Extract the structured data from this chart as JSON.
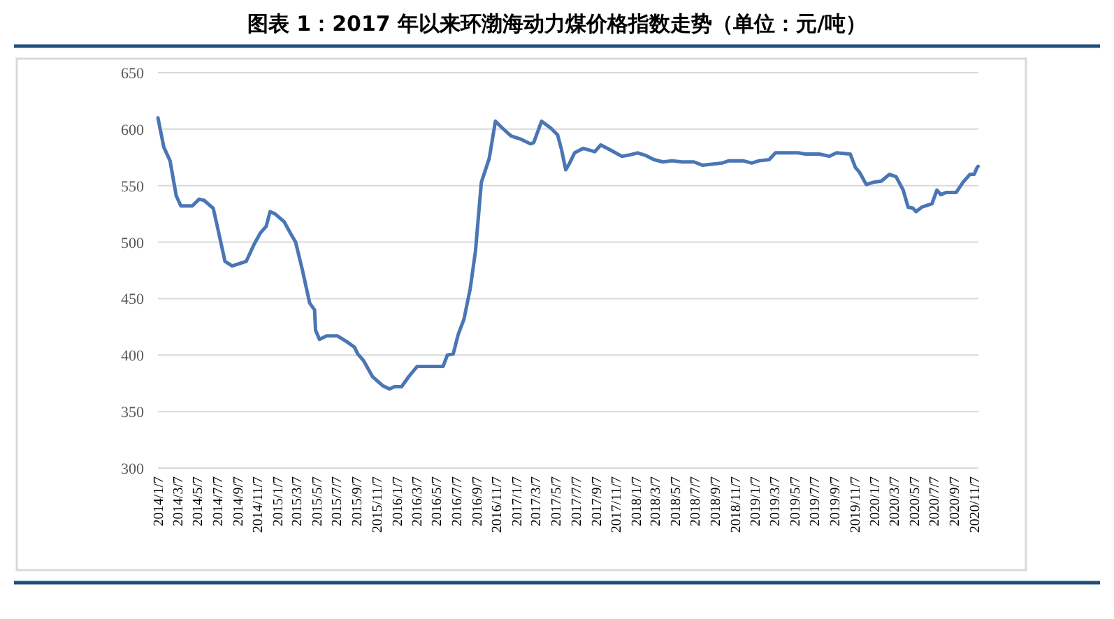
{
  "chart_data": {
    "type": "line",
    "title": "图表 1：2017 年以来环渤海动力煤价格指数走势（单位：元/吨）",
    "x": [
      "2014-01-07",
      "2014-01-25",
      "2014-02-13",
      "2014-03-04",
      "2014-03-18",
      "2014-04-22",
      "2014-05-13",
      "2014-05-28",
      "2014-06-25",
      "2014-07-06",
      "2014-07-31",
      "2014-08-22",
      "2014-10-04",
      "2014-10-28",
      "2014-11-16",
      "2014-12-04",
      "2014-12-16",
      "2014-12-31",
      "2015-01-28",
      "2015-02-16",
      "2015-03-04",
      "2015-03-25",
      "2015-04-16",
      "2015-05-01",
      "2015-05-04",
      "2015-05-16",
      "2015-06-07",
      "2015-07-10",
      "2015-08-07",
      "2015-08-31",
      "2015-09-10",
      "2015-09-28",
      "2015-10-25",
      "2015-11-25",
      "2015-12-16",
      "2015-12-31",
      "2016-01-22",
      "2016-02-13",
      "2016-03-10",
      "2016-05-28",
      "2016-06-10",
      "2016-06-28",
      "2016-07-13",
      "2016-07-31",
      "2016-08-19",
      "2016-09-04",
      "2016-09-22",
      "2016-10-16",
      "2016-11-04",
      "2016-11-25",
      "2016-12-22",
      "2017-01-22",
      "2017-02-19",
      "2017-03-01",
      "2017-03-25",
      "2017-04-22",
      "2017-05-13",
      "2017-05-25",
      "2017-06-07",
      "2017-06-19",
      "2017-07-04",
      "2017-07-31",
      "2017-09-04",
      "2017-09-22",
      "2017-10-19",
      "2017-11-25",
      "2017-12-16",
      "2018-01-13",
      "2018-02-04",
      "2018-03-04",
      "2018-03-31",
      "2018-04-28",
      "2018-05-28",
      "2018-07-04",
      "2018-07-31",
      "2018-08-28",
      "2018-09-28",
      "2018-10-19",
      "2018-12-01",
      "2018-12-28",
      "2019-01-19",
      "2019-02-19",
      "2019-03-10",
      "2019-04-16",
      "2019-05-19",
      "2019-06-10",
      "2019-07-22",
      "2019-08-22",
      "2019-09-13",
      "2019-10-25",
      "2019-11-10",
      "2019-11-22",
      "2019-12-13",
      "2020-01-04",
      "2020-01-28",
      "2020-02-22",
      "2020-03-13",
      "2020-04-04",
      "2020-04-19",
      "2020-05-04",
      "2020-05-13",
      "2020-05-31",
      "2020-07-01",
      "2020-07-16",
      "2020-07-28",
      "2020-08-13",
      "2020-09-13",
      "2020-10-04",
      "2020-10-25",
      "2020-11-07",
      "2020-11-16",
      "2020-11-19"
    ],
    "series": [
      {
        "color": "#4a76b5",
        "values": [
          610,
          584,
          572,
          541,
          532,
          532,
          538,
          537,
          530,
          516,
          483,
          479,
          483,
          498,
          508,
          514,
          527,
          525,
          518,
          508,
          500,
          475,
          446,
          440,
          422,
          414,
          417,
          417,
          412,
          407,
          401,
          395,
          381,
          373,
          370,
          372,
          372,
          381,
          390,
          390,
          400,
          401,
          418,
          432,
          459,
          492,
          553,
          574,
          607,
          601,
          594,
          591,
          587,
          588,
          607,
          601,
          595,
          582,
          564,
          570,
          579,
          583,
          580,
          586,
          582,
          576,
          577,
          579,
          577,
          573,
          571,
          572,
          571,
          571,
          568,
          569,
          570,
          572,
          572,
          570,
          572,
          573,
          579,
          579,
          579,
          578,
          578,
          576,
          579,
          578,
          566,
          562,
          551,
          553,
          554,
          560,
          558,
          546,
          531,
          530,
          527,
          531,
          534,
          546,
          542,
          544,
          544,
          553,
          560,
          560,
          566,
          567
        ]
      }
    ],
    "xlim": [
      "2014-01-07",
      "2020-11-20"
    ],
    "xticks": [
      {
        "value": "2014-01-07",
        "label": "2014/1/7"
      },
      {
        "value": "2014-03-07",
        "label": "2014/3/7"
      },
      {
        "value": "2014-05-07",
        "label": "2014/5/7"
      },
      {
        "value": "2014-07-07",
        "label": "2014/7/7"
      },
      {
        "value": "2014-09-07",
        "label": "2014/9/7"
      },
      {
        "value": "2014-11-07",
        "label": "2014/11/7"
      },
      {
        "value": "2015-01-07",
        "label": "2015/1/7"
      },
      {
        "value": "2015-03-07",
        "label": "2015/3/7"
      },
      {
        "value": "2015-05-07",
        "label": "2015/5/7"
      },
      {
        "value": "2015-07-07",
        "label": "2015/7/7"
      },
      {
        "value": "2015-09-07",
        "label": "2015/9/7"
      },
      {
        "value": "2015-11-07",
        "label": "2015/11/7"
      },
      {
        "value": "2016-01-07",
        "label": "2016/1/7"
      },
      {
        "value": "2016-03-07",
        "label": "2016/3/7"
      },
      {
        "value": "2016-05-07",
        "label": "2016/5/7"
      },
      {
        "value": "2016-07-07",
        "label": "2016/7/7"
      },
      {
        "value": "2016-09-07",
        "label": "2016/9/7"
      },
      {
        "value": "2016-11-07",
        "label": "2016/11/7"
      },
      {
        "value": "2017-01-07",
        "label": "2017/1/7"
      },
      {
        "value": "2017-03-07",
        "label": "2017/3/7"
      },
      {
        "value": "2017-05-07",
        "label": "2017/5/7"
      },
      {
        "value": "2017-07-07",
        "label": "2017/7/7"
      },
      {
        "value": "2017-09-07",
        "label": "2017/9/7"
      },
      {
        "value": "2017-11-07",
        "label": "2017/11/7"
      },
      {
        "value": "2018-01-07",
        "label": "2018/1/7"
      },
      {
        "value": "2018-03-07",
        "label": "2018/3/7"
      },
      {
        "value": "2018-05-07",
        "label": "2018/5/7"
      },
      {
        "value": "2018-07-07",
        "label": "2018/7/7"
      },
      {
        "value": "2018-09-07",
        "label": "2018/9/7"
      },
      {
        "value": "2018-11-07",
        "label": "2018/11/7"
      },
      {
        "value": "2019-01-07",
        "label": "2019/1/7"
      },
      {
        "value": "2019-03-07",
        "label": "2019/3/7"
      },
      {
        "value": "2019-05-07",
        "label": "2019/5/7"
      },
      {
        "value": "2019-07-07",
        "label": "2019/7/7"
      },
      {
        "value": "2019-09-07",
        "label": "2019/9/7"
      },
      {
        "value": "2019-11-07",
        "label": "2019/11/7"
      },
      {
        "value": "2020-01-07",
        "label": "2020/1/7"
      },
      {
        "value": "2020-03-07",
        "label": "2020/3/7"
      },
      {
        "value": "2020-05-07",
        "label": "2020/5/7"
      },
      {
        "value": "2020-07-07",
        "label": "2020/7/7"
      },
      {
        "value": "2020-09-07",
        "label": "2020/9/7"
      },
      {
        "value": "2020-11-07",
        "label": "2020/11/7"
      }
    ],
    "ylim": [
      300,
      650
    ],
    "yticks": [
      300,
      350,
      400,
      450,
      500,
      550,
      600,
      650
    ],
    "grid": "y"
  }
}
